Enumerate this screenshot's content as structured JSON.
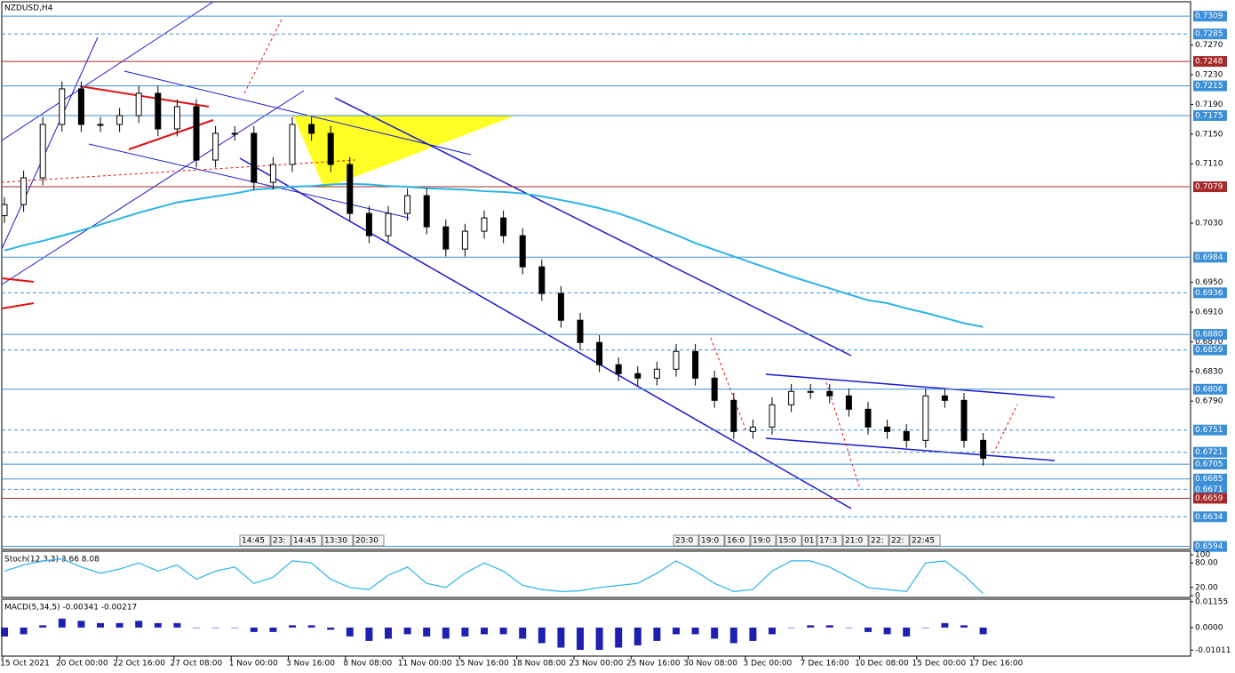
{
  "chart_data": {
    "type": "candlestick",
    "title": "NZDUSD,H4",
    "categories": [
      "15 Oct 2021",
      "20 Oct 00:00",
      "22 Oct 16:00",
      "27 Oct 08:00",
      "1 Nov 00:00",
      "3 Nov 16:00",
      "8 Nov 08:00",
      "11 Nov 00:00",
      "15 Nov 16:00",
      "18 Nov 08:00",
      "23 Nov 00:00",
      "25 Nov 16:00",
      "30 Nov 08:00",
      "3 Dec 00:00",
      "7 Dec 16:00",
      "10 Dec 08:00",
      "15 Dec 00:00",
      "17 Dec 16:00"
    ],
    "ylim": [
      0.659,
      0.7326
    ],
    "yticks": [
      {
        "value": 0.727,
        "label": "0.7270"
      },
      {
        "value": 0.723,
        "label": "0.7230"
      },
      {
        "value": 0.719,
        "label": "0.7190"
      },
      {
        "value": 0.715,
        "label": "0.7150"
      },
      {
        "value": 0.711,
        "label": "0.7110"
      },
      {
        "value": 0.703,
        "label": "0.7030"
      },
      {
        "value": 0.695,
        "label": "0.6950"
      },
      {
        "value": 0.691,
        "label": "0.6910"
      },
      {
        "value": 0.687,
        "label": "0.6870"
      },
      {
        "value": 0.683,
        "label": "0.6830"
      },
      {
        "value": 0.679,
        "label": "0.6790"
      }
    ],
    "grid": false,
    "levels": [
      {
        "value": 0.7309,
        "label": "0.7309",
        "color": "#3c8fd6",
        "dashed": false
      },
      {
        "value": 0.7285,
        "label": "0.7285",
        "color": "#3c8fd6",
        "dashed": true
      },
      {
        "value": 0.7248,
        "label": "0.7248",
        "color": "#a52a2a",
        "dashed": false
      },
      {
        "value": 0.7215,
        "label": "0.7215",
        "color": "#3c8fd6",
        "dashed": false
      },
      {
        "value": 0.7175,
        "label": "0.7175",
        "color": "#3c8fd6",
        "dashed": false
      },
      {
        "value": 0.7079,
        "label": "0.7079",
        "color": "#a52a2a",
        "dashed": false
      },
      {
        "value": 0.6984,
        "label": "0.6984",
        "color": "#3c8fd6",
        "dashed": false
      },
      {
        "value": 0.6936,
        "label": "0.6936",
        "color": "#3c8fd6",
        "dashed": true
      },
      {
        "value": 0.688,
        "label": "0.6880",
        "color": "#3c8fd6",
        "dashed": false
      },
      {
        "value": 0.6859,
        "label": "0.6859",
        "color": "#3c8fd6",
        "dashed": true
      },
      {
        "value": 0.6806,
        "label": "0.6806",
        "color": "#3c8fd6",
        "dashed": false
      },
      {
        "value": 0.6751,
        "label": "0.6751",
        "color": "#3c8fd6",
        "dashed": true
      },
      {
        "value": 0.6721,
        "label": "0.6721",
        "color": "#3c8fd6",
        "dashed": true
      },
      {
        "value": 0.6705,
        "label": "0.6705",
        "color": "#3c8fd6",
        "dashed": false
      },
      {
        "value": 0.6685,
        "label": "0.6685",
        "color": "#3c8fd6",
        "dashed": false
      },
      {
        "value": 0.6671,
        "label": "0.6671",
        "color": "#3c8fd6",
        "dashed": true
      },
      {
        "value": 0.6659,
        "label": "0.6659",
        "color": "#a52a2a",
        "dashed": false
      },
      {
        "value": 0.6634,
        "label": "0.6634",
        "color": "#3c8fd6",
        "dashed": true
      },
      {
        "value": 0.6594,
        "label": "0.6594",
        "color": "#3c8fd6",
        "dashed": false
      }
    ],
    "open": [
      0.704,
      0.7055,
      0.7091,
      0.7163,
      0.7211,
      0.7163,
      0.7163,
      0.7175,
      0.7205,
      0.7157,
      0.7187,
      0.7115,
      0.7151,
      0.7151,
      0.7085,
      0.7109,
      0.7163,
      0.7151,
      0.7109,
      0.7043,
      0.7013,
      0.7043,
      0.7067,
      0.7025,
      0.6995,
      0.7019,
      0.7037,
      0.7013,
      0.6971,
      0.6935,
      0.6899,
      0.6869,
      0.6839,
      0.6827,
      0.6821,
      0.6833,
      0.6857,
      0.6821,
      0.6791,
      0.6749,
      0.6755,
      0.6785,
      0.6803,
      0.6803,
      0.6797,
      0.6779,
      0.6755,
      0.6749,
      0.6737,
      0.6797,
      0.6791,
      0.6737
    ],
    "high": [
      0.7065,
      0.7101,
      0.7173,
      0.7221,
      0.7221,
      0.7173,
      0.7185,
      0.7215,
      0.7215,
      0.7197,
      0.7197,
      0.7161,
      0.7161,
      0.7161,
      0.7119,
      0.7173,
      0.7173,
      0.7161,
      0.7119,
      0.7053,
      0.7053,
      0.7077,
      0.7077,
      0.7035,
      0.7029,
      0.7047,
      0.7047,
      0.7023,
      0.6981,
      0.6945,
      0.6909,
      0.6879,
      0.6849,
      0.6837,
      0.6843,
      0.6867,
      0.6867,
      0.6831,
      0.6801,
      0.6765,
      0.6795,
      0.6813,
      0.6813,
      0.6813,
      0.6807,
      0.6789,
      0.6765,
      0.6759,
      0.6807,
      0.6807,
      0.6801,
      0.6747
    ],
    "low": [
      0.703,
      0.7045,
      0.7081,
      0.7153,
      0.7153,
      0.7153,
      0.7153,
      0.7165,
      0.7147,
      0.7147,
      0.7105,
      0.7105,
      0.7141,
      0.7075,
      0.7075,
      0.7099,
      0.7141,
      0.7099,
      0.7033,
      0.7003,
      0.7003,
      0.7033,
      0.7015,
      0.6985,
      0.6985,
      0.7009,
      0.7003,
      0.6961,
      0.6925,
      0.6889,
      0.6859,
      0.6829,
      0.6817,
      0.6811,
      0.6811,
      0.6823,
      0.6811,
      0.6781,
      0.6739,
      0.6739,
      0.6745,
      0.6775,
      0.6793,
      0.6787,
      0.6769,
      0.6745,
      0.6739,
      0.6727,
      0.6727,
      0.6781,
      0.6727,
      0.6703
    ],
    "close": [
      0.7055,
      0.7091,
      0.7163,
      0.7211,
      0.7163,
      0.7163,
      0.7175,
      0.7205,
      0.7157,
      0.7187,
      0.7115,
      0.7151,
      0.7151,
      0.7085,
      0.7109,
      0.7163,
      0.7151,
      0.7109,
      0.7043,
      0.7013,
      0.7043,
      0.7067,
      0.7025,
      0.6995,
      0.7019,
      0.7037,
      0.7013,
      0.6971,
      0.6935,
      0.6899,
      0.6869,
      0.6839,
      0.6827,
      0.6821,
      0.6833,
      0.6857,
      0.6821,
      0.6791,
      0.6749,
      0.6755,
      0.6785,
      0.6803,
      0.6803,
      0.6797,
      0.6779,
      0.6755,
      0.6749,
      0.6737,
      0.6797,
      0.6791,
      0.6737,
      0.6713
    ],
    "ma": {
      "color": "#2bb3e8",
      "values": [
        0.6993,
        0.7,
        0.7006,
        0.7013,
        0.702,
        0.7028,
        0.7036,
        0.7044,
        0.7051,
        0.7058,
        0.7062,
        0.7066,
        0.707,
        0.7075,
        0.7077,
        0.7079,
        0.708,
        0.7082,
        0.7083,
        0.7082,
        0.708,
        0.7079,
        0.7077,
        0.7076,
        0.7075,
        0.7073,
        0.7072,
        0.707,
        0.7066,
        0.7061,
        0.7056,
        0.705,
        0.7043,
        0.7034,
        0.7024,
        0.7014,
        0.7003,
        0.6994,
        0.6985,
        0.6976,
        0.6967,
        0.6958,
        0.695,
        0.6942,
        0.6934,
        0.6926,
        0.6922,
        0.6915,
        0.6909,
        0.6902,
        0.6895,
        0.689
      ]
    },
    "time_marks_left": [
      "14:45",
      "23:",
      "14:45",
      "13:30",
      "20:30"
    ],
    "time_marks_right": [
      "23:0",
      "19:0",
      "16:0",
      "19:0",
      "15:0",
      "01",
      "17:3",
      "21:0",
      "22:",
      "22:",
      "22:45"
    ],
    "stoch": {
      "label": "Stoch(12,3,3) 3.66 8.08",
      "color": "#2bb3e8",
      "ylim": [
        0,
        100
      ],
      "yticks": [
        100,
        {
          "value": 80,
          "label": "80.00"
        },
        {
          "value": 20,
          "label": "20.00"
        },
        0
      ],
      "values": [
        60,
        75,
        85,
        90,
        70,
        55,
        65,
        80,
        60,
        75,
        40,
        60,
        70,
        30,
        45,
        85,
        80,
        40,
        20,
        15,
        50,
        70,
        30,
        20,
        55,
        80,
        60,
        25,
        15,
        10,
        12,
        20,
        25,
        30,
        55,
        85,
        60,
        30,
        10,
        15,
        60,
        85,
        85,
        70,
        45,
        20,
        15,
        10,
        80,
        85,
        50,
        5
      ]
    },
    "macd": {
      "label": "MACD(5,34,5) -0.00341 -0.00217",
      "color": "#2020b0",
      "ylim": [
        -0.0124,
        0.0123
      ],
      "yticks": [
        0.01155,
        {
          "value": 0,
          "label": "0.0000"
        },
        -0.01011
      ],
      "values": [
        -0.004,
        -0.003,
        0.001,
        0.004,
        0.003,
        0.002,
        0.002,
        0.003,
        0.002,
        0.002,
        0.0,
        0.0,
        0.0,
        -0.002,
        -0.002,
        0.001,
        0.001,
        -0.001,
        -0.004,
        -0.006,
        -0.005,
        -0.003,
        -0.004,
        -0.005,
        -0.004,
        -0.003,
        -0.003,
        -0.005,
        -0.007,
        -0.009,
        -0.01,
        -0.01,
        -0.009,
        -0.008,
        -0.006,
        -0.003,
        -0.003,
        -0.005,
        -0.007,
        -0.006,
        -0.003,
        0.0,
        0.001,
        0.001,
        0.0,
        -0.002,
        -0.003,
        -0.004,
        0.0,
        0.002,
        0.001,
        -0.003
      ]
    }
  }
}
